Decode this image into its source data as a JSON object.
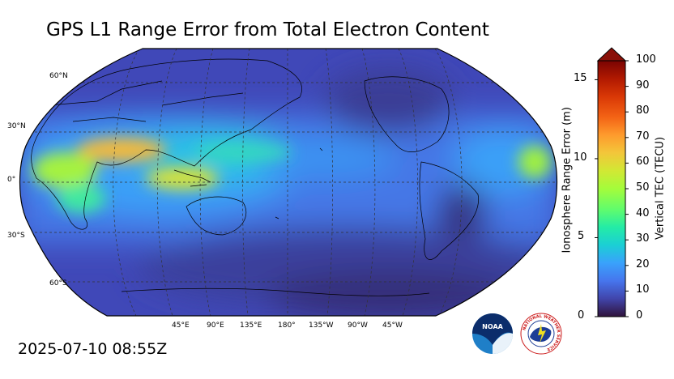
{
  "title": "GPS L1 Range Error from Total Electron Content",
  "timestamp": "2025-07-10 08:55Z",
  "map": {
    "projection": "robinson",
    "lat_labels": [
      "60°N",
      "30°N",
      "0°",
      "30°S",
      "60°S"
    ],
    "lon_labels": [
      "45°E",
      "90°E",
      "135°E",
      "180°",
      "135°W",
      "90°W",
      "45°W"
    ]
  },
  "colorbar": {
    "left_axis_title": "Ionosphere Range Error (m)",
    "right_axis_title": "Vertical TEC (TECU)",
    "left_ticks": [
      "0",
      "5",
      "10",
      "15"
    ],
    "right_ticks": [
      "0",
      "10",
      "20",
      "30",
      "40",
      "50",
      "60",
      "70",
      "80",
      "90",
      "100"
    ],
    "tec_range": [
      0,
      100
    ],
    "range_error_range": [
      0,
      16.2
    ],
    "extend": "max",
    "extend_color": "#8a1008",
    "colormap": [
      "#30123b",
      "#4145ab",
      "#4675ed",
      "#39a2fc",
      "#1bcfd4",
      "#24eca6",
      "#61fc6c",
      "#a4fc3b",
      "#d1e834",
      "#f3c63a",
      "#fe9b2d",
      "#f36315",
      "#d93806",
      "#b11901",
      "#7a0402"
    ]
  },
  "logos": [
    {
      "name": "noaa-logo",
      "text": "NOAA"
    },
    {
      "name": "nws-logo",
      "text": "NATIONAL WEATHER SERVICE"
    }
  ]
}
